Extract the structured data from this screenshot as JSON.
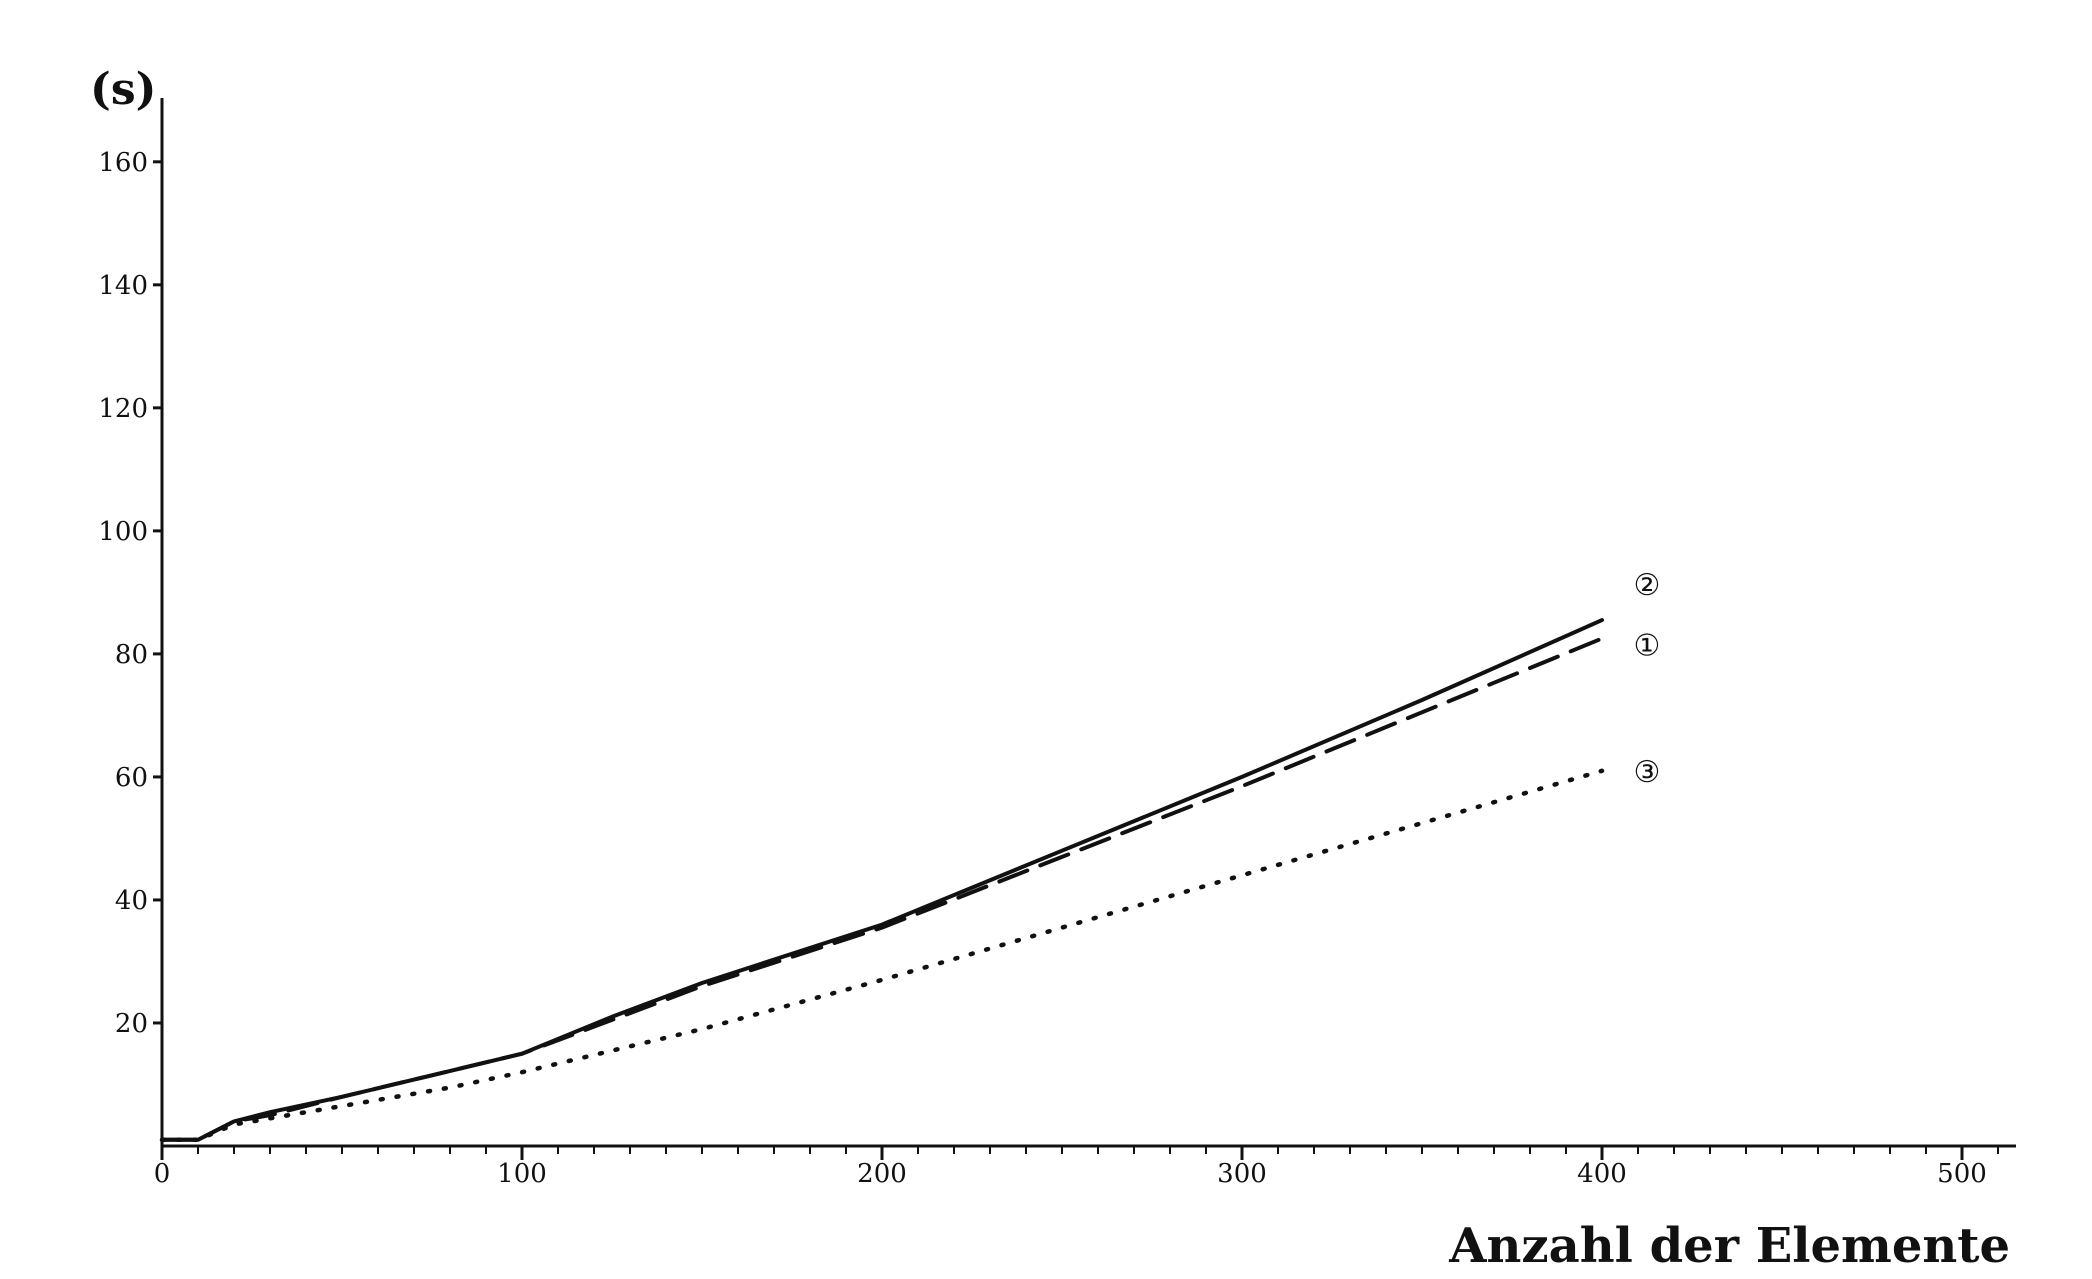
{
  "chart_data": {
    "type": "line",
    "title": "",
    "xlabel": "Anzahl der Elemente",
    "ylabel": "(s)",
    "xlim": [
      0,
      515
    ],
    "ylim": [
      0,
      172
    ],
    "x_ticks": [
      0,
      100,
      200,
      300,
      400,
      500
    ],
    "x_tick_labels": [
      "0",
      "100",
      "200",
      "300",
      "400",
      "500"
    ],
    "x_minor_tick_step": 10,
    "y_ticks": [
      20,
      40,
      60,
      80,
      100,
      120,
      140,
      160
    ],
    "y_tick_labels": [
      "20",
      "40",
      "60",
      "80",
      "100",
      "120",
      "140",
      "160"
    ],
    "grid": false,
    "legend": "inline labels at line ends",
    "series": [
      {
        "name": "②",
        "style": "solid",
        "color": "#111111",
        "x": [
          0,
          10,
          20,
          30,
          50,
          75,
          100,
          125,
          150,
          200,
          250,
          300,
          350,
          400
        ],
        "y": [
          1,
          1,
          4,
          5.5,
          8,
          11.5,
          15,
          21,
          26.5,
          36,
          48,
          60,
          72.5,
          85.5
        ]
      },
      {
        "name": "①",
        "style": "dashed",
        "color": "#111111",
        "x": [
          0,
          10,
          20,
          30,
          50,
          75,
          100,
          125,
          150,
          200,
          250,
          300,
          350,
          400
        ],
        "y": [
          1,
          1,
          4,
          5,
          8,
          11.5,
          15,
          20.5,
          26,
          35.5,
          47,
          58.5,
          70.5,
          82.5
        ]
      },
      {
        "name": "③",
        "style": "dotted",
        "color": "#111111",
        "x": [
          0,
          10,
          20,
          40,
          60,
          80,
          100,
          150,
          200,
          250,
          300,
          350,
          400
        ],
        "y": [
          1,
          1,
          3.5,
          5.5,
          7.5,
          9.5,
          12,
          19,
          27,
          35.5,
          44,
          52.5,
          61
        ]
      }
    ]
  }
}
